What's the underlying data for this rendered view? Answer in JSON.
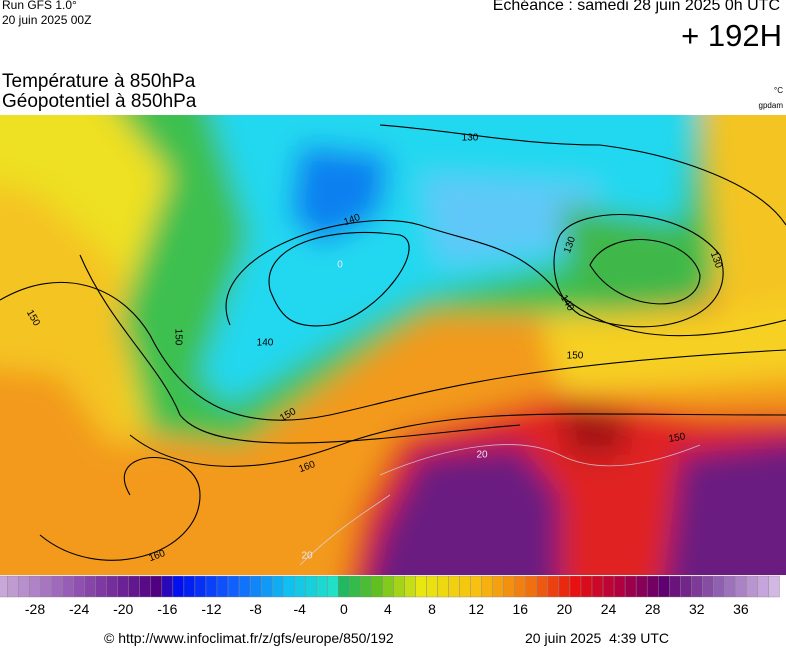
{
  "header": {
    "run": "Run GFS 1.0°",
    "run_date": "20 juin 2025 00Z",
    "valid": "Echéance : samedi 28 juin 2025 0h UTC",
    "lead": "+ 192H",
    "title1": "Température à 850hPa",
    "title2": "Géopotentiel à 850hPa",
    "unit1": "°C",
    "unit2": "gpdam"
  },
  "map": {
    "geopotential_labels": [
      "130",
      "130",
      "130",
      "140",
      "140",
      "140",
      "150",
      "150",
      "150",
      "150",
      "150",
      "160",
      "160"
    ],
    "temperature_labels": [
      "20",
      "20",
      "0"
    ]
  },
  "colorbar": {
    "ticks": [
      -28,
      -24,
      -20,
      -16,
      -12,
      -8,
      -4,
      0,
      4,
      8,
      12,
      16,
      20,
      24,
      28,
      32,
      36
    ]
  },
  "footer": {
    "url": "© http://www.infoclimat.fr/z/gfs/europe/850/192",
    "timestamp": "20 juin 2025  4:39 UTC"
  }
}
